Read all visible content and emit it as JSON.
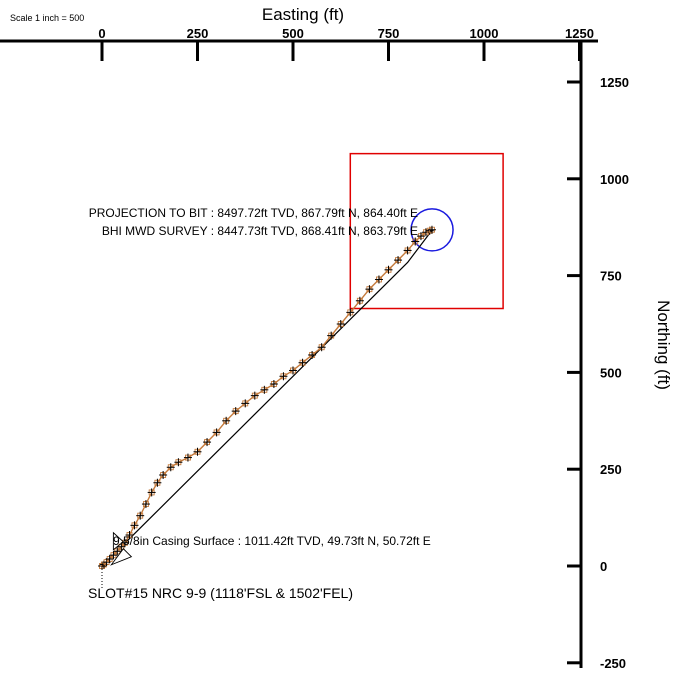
{
  "chart_data": {
    "type": "line",
    "scale_note": "Scale 1 inch = 500",
    "xlabel": "Easting (ft)",
    "ylabel": "Northing (ft)",
    "xlim": [
      -530,
      1270
    ],
    "ylim": [
      -250,
      1350
    ],
    "x_ticks": [
      0,
      250,
      500,
      750,
      1000,
      1250
    ],
    "y_ticks": [
      1250,
      1000,
      750,
      500,
      250,
      0,
      -250
    ],
    "colors": {
      "axis": "#000000",
      "actual_path": "#000000",
      "survey_markers": "#c47a3c",
      "target_box": "#e00000",
      "target_circle": "#1a1adf"
    },
    "series": [
      {
        "style": "planned-line",
        "points": [
          [
            0,
            0
          ],
          [
            50.72,
            49.73
          ],
          [
            200,
            196
          ],
          [
            350,
            343
          ],
          [
            500,
            490
          ],
          [
            650,
            637
          ],
          [
            800,
            784
          ],
          [
            864.4,
            867.79
          ]
        ]
      },
      {
        "style": "survey-path",
        "points": [
          [
            0,
            0
          ],
          [
            5,
            4
          ],
          [
            12,
            10
          ],
          [
            20,
            18
          ],
          [
            30,
            28
          ],
          [
            40,
            38
          ],
          [
            50.72,
            49.73
          ],
          [
            60,
            60
          ],
          [
            72,
            80
          ],
          [
            85,
            105
          ],
          [
            100,
            130
          ],
          [
            115,
            160
          ],
          [
            130,
            190
          ],
          [
            145,
            215
          ],
          [
            160,
            235
          ],
          [
            180,
            255
          ],
          [
            200,
            268
          ],
          [
            225,
            280
          ],
          [
            250,
            295
          ],
          [
            275,
            320
          ],
          [
            300,
            345
          ],
          [
            325,
            375
          ],
          [
            350,
            400
          ],
          [
            375,
            420
          ],
          [
            400,
            440
          ],
          [
            425,
            455
          ],
          [
            450,
            470
          ],
          [
            475,
            490
          ],
          [
            500,
            505
          ],
          [
            525,
            525
          ],
          [
            550,
            545
          ],
          [
            575,
            565
          ],
          [
            600,
            595
          ],
          [
            625,
            625
          ],
          [
            650,
            655
          ],
          [
            675,
            685
          ],
          [
            700,
            715
          ],
          [
            725,
            740
          ],
          [
            750,
            765
          ],
          [
            775,
            790
          ],
          [
            800,
            815
          ],
          [
            820,
            838
          ],
          [
            835,
            852
          ],
          [
            848,
            862
          ],
          [
            858,
            866
          ],
          [
            863.79,
            868.41
          ]
        ]
      }
    ],
    "target_box": {
      "x_min": 650,
      "x_max": 1050,
      "y_min": 665,
      "y_max": 1065
    },
    "target_circle": {
      "x": 864,
      "y": 868,
      "radius": 55
    },
    "annotations": [
      {
        "text": "PROJECTION TO BIT : 8497.72ft TVD, 867.79ft N, 864.40ft E",
        "x": 864.4,
        "y": 867.79
      },
      {
        "text": "BHI MWD SURVEY : 8447.73ft TVD, 868.41ft N, 863.79ft E",
        "x": 863.79,
        "y": 868.41
      },
      {
        "text": "9 5/8in Casing Surface : 1011.42ft TVD, 49.73ft N, 50.72ft E",
        "x": 50.72,
        "y": 49.73
      },
      {
        "text": "SLOT#15 NRC 9-9 (1118'FSL & 1502'FEL)",
        "x": 0,
        "y": 0
      }
    ]
  }
}
